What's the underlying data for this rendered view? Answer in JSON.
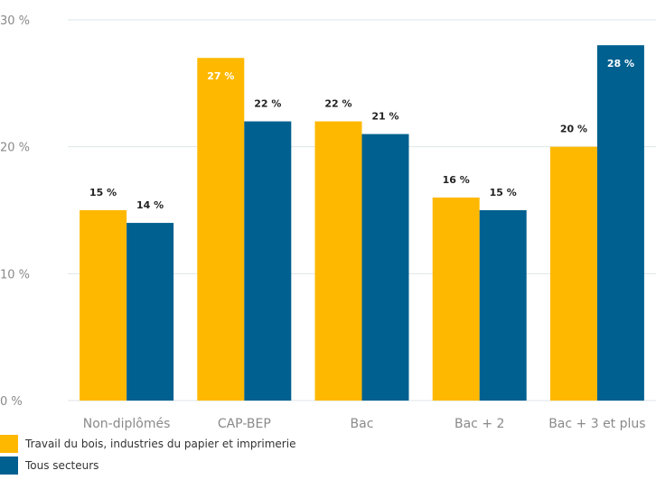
{
  "colors": {
    "series1": "#FFB800",
    "series2": "#00608F",
    "grid": "#dde6ea",
    "axis_text": "#8a8a8a"
  },
  "chart_data": {
    "type": "bar",
    "title": "",
    "xlabel": "",
    "ylabel": "",
    "categories": [
      "Non-diplômés",
      "CAP-BEP",
      "Bac",
      "Bac + 2",
      "Bac + 3 et plus"
    ],
    "series": [
      {
        "name": "Travail du bois, industries du papier et imprimerie",
        "values": [
          15,
          27,
          22,
          16,
          20
        ],
        "labels": [
          "15 %",
          "27 %",
          "22 %",
          "16 %",
          "20 %"
        ]
      },
      {
        "name": "Tous secteurs",
        "values": [
          14,
          22,
          21,
          15,
          28
        ],
        "labels": [
          "14 %",
          "22 %",
          "21 %",
          "15 %",
          "28 %"
        ]
      }
    ],
    "ylim": [
      0,
      30
    ],
    "yticks": [
      0,
      10,
      20,
      30
    ],
    "ytick_labels": [
      "0 %",
      "10 %",
      "20 %",
      "30 %"
    ],
    "grid": true,
    "legend_position": "bottom-left"
  }
}
